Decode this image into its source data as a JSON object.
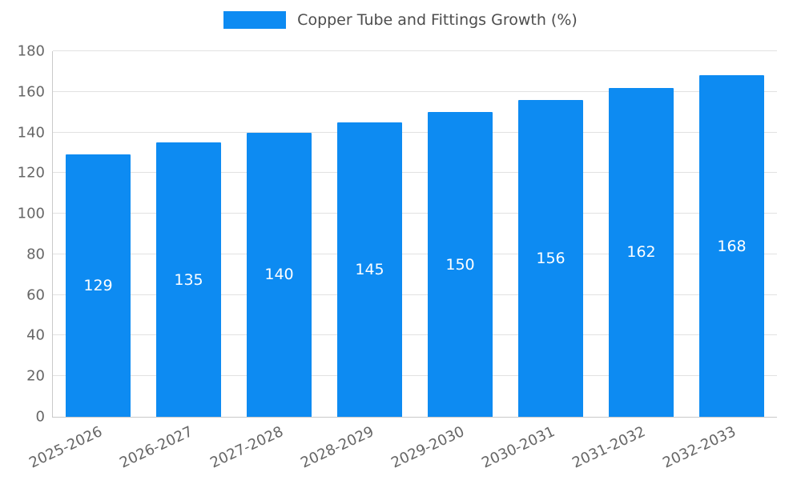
{
  "chart_data": {
    "type": "bar",
    "title": "Copper Tube and Fittings Growth (%)",
    "categories": [
      "2025-2026",
      "2026-2027",
      "2027-2028",
      "2028-2029",
      "2029-2030",
      "2030-2031",
      "2031-2032",
      "2032-2033"
    ],
    "values": [
      129,
      135,
      140,
      145,
      150,
      156,
      162,
      168
    ],
    "xlabel": "",
    "ylabel": "",
    "ylim": [
      0,
      180
    ],
    "ytick_step": 20,
    "grid": true,
    "legend_position": "top-center",
    "bar_color": "#0d8bf2",
    "value_label_color": "#ffffff",
    "tick_label_color": "#666666",
    "title_color": "#4d4d4d",
    "gridline_color": "#e2e2e2"
  }
}
